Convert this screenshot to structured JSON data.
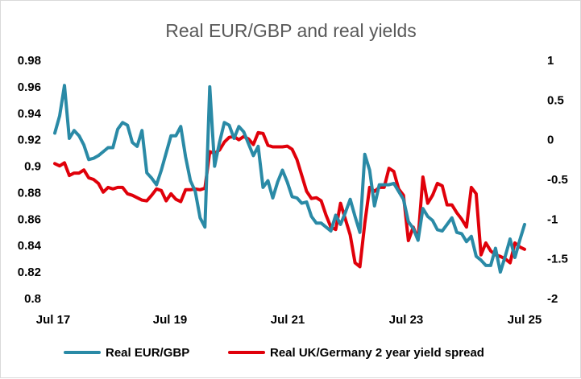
{
  "chart_data": {
    "type": "line",
    "title": "Real EUR/GBP and real yields",
    "xlabel": "",
    "ylabel": "",
    "x_ticks": [
      "Jul 17",
      "Jul 19",
      "Jul 21",
      "Jul 23",
      "Jul 25"
    ],
    "ylim_left": [
      0.8,
      0.98
    ],
    "ylim_right": [
      -2,
      1
    ],
    "y_ticks_left": [
      "0.98",
      "0.96",
      "0.94",
      "0.92",
      "0.9",
      "0.88",
      "0.86",
      "0.84",
      "0.82",
      "0.8"
    ],
    "y_ticks_right": [
      "1",
      "0.5",
      "0",
      "-0.5",
      "-1",
      "-1.5",
      "-2"
    ],
    "grid": false,
    "legend_position": "bottom",
    "series": [
      {
        "name": "Real EUR/GBP",
        "axis": "left",
        "color": "#2a8aa6",
        "x": [
          "2017-06",
          "2017-07",
          "2017-08",
          "2017-09",
          "2017-10",
          "2017-11",
          "2017-12",
          "2018-01",
          "2018-02",
          "2018-03",
          "2018-04",
          "2018-05",
          "2018-06",
          "2018-07",
          "2018-08",
          "2018-09",
          "2018-10",
          "2018-11",
          "2018-12",
          "2019-01",
          "2019-02",
          "2019-03",
          "2019-04",
          "2019-05",
          "2019-06",
          "2019-07",
          "2019-08",
          "2019-09",
          "2019-10",
          "2019-11",
          "2019-12",
          "2020-01",
          "2020-02",
          "2020-03",
          "2020-04",
          "2020-05",
          "2020-06",
          "2020-07",
          "2020-08",
          "2020-09",
          "2020-10",
          "2020-11",
          "2020-12",
          "2021-01",
          "2021-02",
          "2021-03",
          "2021-04",
          "2021-05",
          "2021-06",
          "2021-07",
          "2021-08",
          "2021-09",
          "2021-10",
          "2021-11",
          "2021-12",
          "2022-01",
          "2022-02",
          "2022-03",
          "2022-04",
          "2022-05",
          "2022-06",
          "2022-07",
          "2022-08",
          "2022-09",
          "2022-10",
          "2022-11",
          "2022-12",
          "2023-01",
          "2023-02",
          "2023-03",
          "2023-04",
          "2023-05",
          "2023-06",
          "2023-07",
          "2023-08",
          "2023-09",
          "2023-10",
          "2023-11",
          "2023-12",
          "2024-01",
          "2024-02",
          "2024-03",
          "2024-04",
          "2024-05",
          "2024-06",
          "2024-07",
          "2024-08",
          "2024-09",
          "2024-10",
          "2024-11",
          "2024-12",
          "2025-01",
          "2025-02",
          "2025-03",
          "2025-04",
          "2025-05",
          "2025-06",
          "2025-07"
        ],
        "values": [
          0.925,
          0.938,
          0.961,
          0.921,
          0.927,
          0.923,
          0.916,
          0.905,
          0.906,
          0.908,
          0.911,
          0.914,
          0.914,
          0.928,
          0.933,
          0.931,
          0.918,
          0.915,
          0.927,
          0.895,
          0.891,
          0.886,
          0.897,
          0.91,
          0.923,
          0.923,
          0.93,
          0.907,
          0.889,
          0.881,
          0.861,
          0.854,
          0.96,
          0.9,
          0.918,
          0.933,
          0.931,
          0.921,
          0.93,
          0.926,
          0.917,
          0.908,
          0.915,
          0.884,
          0.889,
          0.876,
          0.888,
          0.897,
          0.888,
          0.877,
          0.876,
          0.872,
          0.873,
          0.862,
          0.857,
          0.857,
          0.854,
          0.851,
          0.863,
          0.856,
          0.865,
          0.875,
          0.862,
          0.85,
          0.909,
          0.897,
          0.87,
          0.886,
          0.886,
          0.886,
          0.887,
          0.881,
          0.875,
          0.858,
          0.853,
          0.844,
          0.868,
          0.862,
          0.859,
          0.852,
          0.851,
          0.856,
          0.861,
          0.85,
          0.849,
          0.843,
          0.847,
          0.832,
          0.829,
          0.825,
          0.825,
          0.838,
          0.82,
          0.832,
          0.845,
          0.831,
          0.844,
          0.856
        ]
      },
      {
        "name": "Real UK/Germany 2 year yield spread",
        "axis": "right",
        "color": "#e0000a",
        "x": [
          "2017-06",
          "2017-07",
          "2017-08",
          "2017-09",
          "2017-10",
          "2017-11",
          "2017-12",
          "2018-01",
          "2018-02",
          "2018-03",
          "2018-04",
          "2018-05",
          "2018-06",
          "2018-07",
          "2018-08",
          "2018-09",
          "2018-10",
          "2018-11",
          "2018-12",
          "2019-01",
          "2019-02",
          "2019-03",
          "2019-04",
          "2019-05",
          "2019-06",
          "2019-07",
          "2019-08",
          "2019-09",
          "2019-10",
          "2019-11",
          "2019-12",
          "2020-01",
          "2020-02",
          "2020-03",
          "2020-04",
          "2020-05",
          "2020-06",
          "2020-07",
          "2020-08",
          "2020-09",
          "2020-10",
          "2020-11",
          "2020-12",
          "2021-01",
          "2021-02",
          "2021-03",
          "2021-04",
          "2021-05",
          "2021-06",
          "2021-07",
          "2021-08",
          "2021-09",
          "2021-10",
          "2021-11",
          "2021-12",
          "2022-01",
          "2022-02",
          "2022-03",
          "2022-04",
          "2022-05",
          "2022-06",
          "2022-07",
          "2022-08",
          "2022-09",
          "2022-10",
          "2022-11",
          "2022-12",
          "2023-01",
          "2023-02",
          "2023-03",
          "2023-04",
          "2023-05",
          "2023-06",
          "2023-07",
          "2023-08",
          "2023-09",
          "2023-10",
          "2023-11",
          "2023-12",
          "2024-01",
          "2024-02",
          "2024-03",
          "2024-04",
          "2024-05",
          "2024-06",
          "2024-07",
          "2024-08",
          "2024-09",
          "2024-10",
          "2024-11",
          "2024-12",
          "2025-01",
          "2025-02",
          "2025-03",
          "2025-04",
          "2025-05",
          "2025-06",
          "2025-07"
        ],
        "values": [
          -0.3,
          -0.33,
          -0.29,
          -0.45,
          -0.42,
          -0.42,
          -0.38,
          -0.48,
          -0.5,
          -0.55,
          -0.66,
          -0.6,
          -0.62,
          -0.6,
          -0.6,
          -0.68,
          -0.7,
          -0.73,
          -0.76,
          -0.77,
          -0.7,
          -0.62,
          -0.64,
          -0.77,
          -0.68,
          -0.75,
          -0.78,
          -0.63,
          -0.63,
          -0.62,
          -0.63,
          -0.61,
          -0.15,
          -0.17,
          -0.13,
          -0.03,
          0.03,
          0.04,
          0.0,
          0.04,
          0.01,
          -0.06,
          0.09,
          0.08,
          -0.07,
          -0.09,
          -0.09,
          -0.09,
          -0.08,
          -0.12,
          -0.25,
          -0.45,
          -0.65,
          -0.74,
          -0.73,
          -0.77,
          -0.95,
          -1.1,
          -1.13,
          -0.8,
          -1.0,
          -1.2,
          -1.55,
          -1.6,
          -1.05,
          -0.6,
          -0.65,
          -0.6,
          -0.6,
          -0.36,
          -0.4,
          -0.62,
          -0.7,
          -1.27,
          -1.1,
          -1.25,
          -0.47,
          -0.8,
          -0.7,
          -0.55,
          -0.58,
          -0.82,
          -0.82,
          -0.92,
          -1.0,
          -1.1,
          -0.6,
          -0.68,
          -1.45,
          -1.3,
          -1.4,
          -1.45,
          -1.47,
          -1.5,
          -1.55,
          -1.3,
          -1.35,
          -1.38
        ]
      }
    ]
  }
}
